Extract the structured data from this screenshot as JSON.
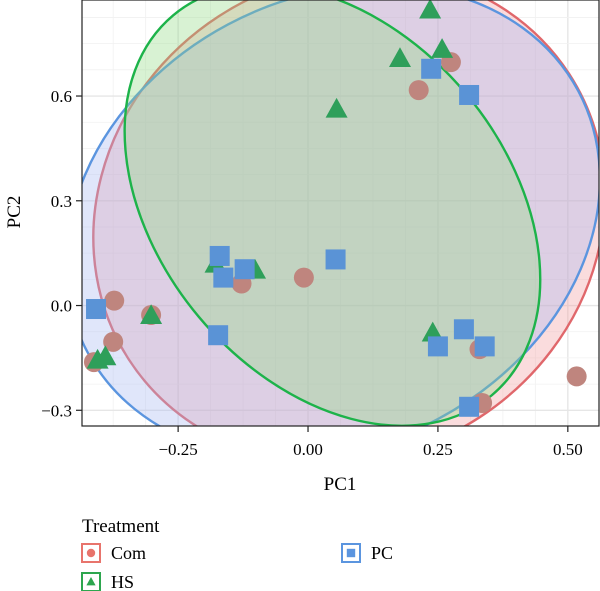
{
  "chart_data": {
    "type": "scatter",
    "xlabel": "PC1",
    "ylabel": "PC2",
    "xlim": [
      -0.435,
      0.56
    ],
    "ylim": [
      -0.345,
      0.875
    ],
    "x_ticks": [
      -0.25,
      0.0,
      0.25,
      0.5
    ],
    "y_ticks": [
      -0.3,
      0.0,
      0.3,
      0.6
    ],
    "x_tick_labels": [
      "−0.25",
      "0.00",
      "0.25",
      "0.50"
    ],
    "y_tick_labels": [
      "−0.3",
      "0.0",
      "0.3",
      "0.6"
    ],
    "grid": true,
    "legend": {
      "title": "Treatment",
      "placement": "bottom",
      "entries": [
        {
          "label": "Com",
          "shape": "circle",
          "color": "#E8746C"
        },
        {
          "label": "HS",
          "shape": "triangle",
          "color": "#2DA64E"
        },
        {
          "label": "PC",
          "shape": "square",
          "color": "#5B95DF"
        }
      ]
    },
    "series": [
      {
        "name": "Com",
        "shape": "circle",
        "fill": "#BF857E",
        "ellipse_stroke": "#E0676B",
        "ellipse_fill": "#F29A9E",
        "ellipse": {
          "cx": 0.079,
          "cy": 0.254,
          "rx": 0.505,
          "ry": 0.685,
          "angle": 33
        },
        "points": [
          [
            0.275,
            0.697
          ],
          [
            0.213,
            0.617
          ],
          [
            -0.373,
            0.014
          ],
          [
            -0.302,
            -0.027
          ],
          [
            -0.375,
            -0.104
          ],
          [
            -0.412,
            -0.162
          ],
          [
            -0.128,
            0.063
          ],
          [
            -0.008,
            0.08
          ],
          [
            0.33,
            -0.125
          ],
          [
            0.335,
            -0.279
          ],
          [
            0.517,
            -0.203
          ]
        ]
      },
      {
        "name": "HS",
        "shape": "triangle",
        "fill": "#2E9F5A",
        "ellipse_stroke": "#1DB34A",
        "ellipse_fill": "#8EDB80",
        "ellipse": {
          "cx": 0.047,
          "cy": 0.287,
          "rx": 0.335,
          "ry": 0.71,
          "angle": 40
        },
        "points": [
          [
            0.235,
            0.845
          ],
          [
            0.258,
            0.732
          ],
          [
            0.177,
            0.706
          ],
          [
            0.055,
            0.561
          ],
          [
            -0.39,
            -0.148
          ],
          [
            -0.405,
            -0.158
          ],
          [
            -0.302,
            -0.03
          ],
          [
            -0.178,
            0.117
          ],
          [
            -0.102,
            0.1
          ],
          [
            0.24,
            -0.08
          ]
        ]
      },
      {
        "name": "PC",
        "shape": "square",
        "fill": "#5A93D6",
        "ellipse_stroke": "#5B95DF",
        "ellipse_fill": "#A7B8F0",
        "ellipse": {
          "cx": 0.048,
          "cy": 0.24,
          "rx": 0.535,
          "ry": 0.64,
          "angle": 28
        },
        "points": [
          [
            0.237,
            0.678
          ],
          [
            0.31,
            0.603
          ],
          [
            -0.408,
            -0.01
          ],
          [
            -0.17,
            0.142
          ],
          [
            -0.122,
            0.104
          ],
          [
            -0.163,
            0.08
          ],
          [
            -0.173,
            -0.085
          ],
          [
            0.053,
            0.132
          ],
          [
            0.25,
            -0.117
          ],
          [
            0.3,
            -0.068
          ],
          [
            0.34,
            -0.117
          ],
          [
            0.31,
            -0.29
          ]
        ]
      }
    ]
  }
}
